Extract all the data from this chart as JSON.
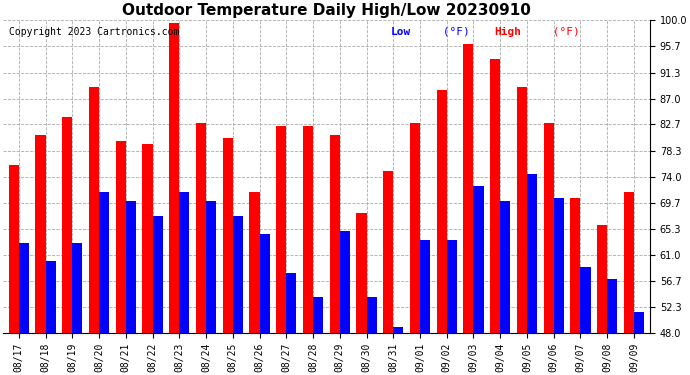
{
  "title": "Outdoor Temperature Daily High/Low 20230910",
  "copyright": "Copyright 2023 Cartronics.com",
  "dates": [
    "08/17",
    "08/18",
    "08/19",
    "08/20",
    "08/21",
    "08/22",
    "08/23",
    "08/24",
    "08/25",
    "08/26",
    "08/27",
    "08/28",
    "08/29",
    "08/30",
    "08/31",
    "09/01",
    "09/02",
    "09/03",
    "09/04",
    "09/05",
    "09/06",
    "09/07",
    "09/08",
    "09/09"
  ],
  "highs": [
    76.0,
    81.0,
    84.0,
    89.0,
    80.0,
    79.5,
    99.5,
    83.0,
    80.5,
    71.5,
    82.5,
    82.5,
    81.0,
    68.0,
    75.0,
    83.0,
    88.5,
    96.0,
    93.5,
    89.0,
    83.0,
    70.5,
    66.0,
    71.5
  ],
  "lows": [
    63.0,
    60.0,
    63.0,
    71.5,
    70.0,
    67.5,
    71.5,
    70.0,
    67.5,
    64.5,
    58.0,
    54.0,
    65.0,
    54.0,
    49.0,
    63.5,
    63.5,
    72.5,
    70.0,
    74.5,
    70.5,
    59.0,
    57.0,
    51.5
  ],
  "ylim_min": 48.0,
  "ylim_max": 100.0,
  "yticks": [
    48.0,
    52.3,
    56.7,
    61.0,
    65.3,
    69.7,
    74.0,
    78.3,
    82.7,
    87.0,
    91.3,
    95.7,
    100.0
  ],
  "bar_width": 0.38,
  "high_color": "#ff0000",
  "low_color": "#0000ff",
  "bg_color": "#ffffff",
  "grid_color": "#aaaaaa",
  "title_fontsize": 11,
  "copyright_fontsize": 7,
  "tick_fontsize": 7,
  "legend_fontsize": 8
}
